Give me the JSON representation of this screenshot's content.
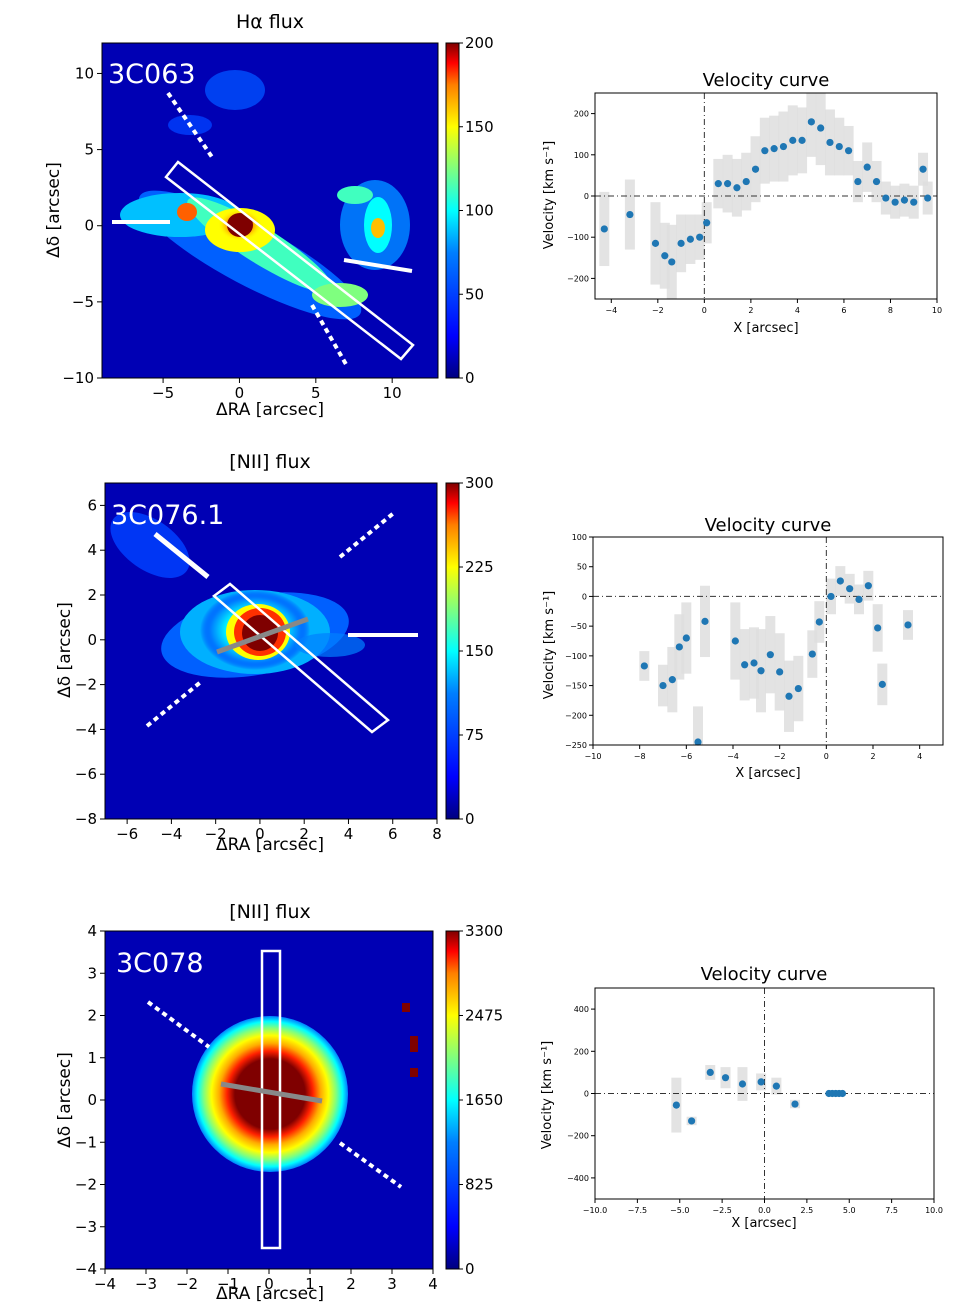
{
  "colorbar_stops": [
    "#00007f",
    "#0000ff",
    "#007fff",
    "#00ffff",
    "#7fff7f",
    "#ffff00",
    "#ff7f00",
    "#ff0000",
    "#7f0000"
  ],
  "mark_color": "#1f77b4",
  "errorbar_color": "#dedede",
  "chart_data": [
    {
      "type": "heatmap",
      "title": "Hα flux",
      "object_label": "3C063",
      "xlabel": "ΔRA [arcsec]",
      "ylabel": "Δδ [arcsec]",
      "xlim": [
        -9,
        13
      ],
      "ylim": [
        -10,
        12
      ],
      "xticks": [
        -5,
        0,
        5,
        10
      ],
      "yticks": [
        -10,
        -5,
        0,
        5,
        10
      ],
      "colorbar_range": [
        0,
        200
      ],
      "colorbar_ticks": [
        0,
        50,
        100,
        150,
        200
      ]
    },
    {
      "type": "scatter",
      "title": "Velocity curve",
      "xlabel": "X [arcsec]",
      "ylabel": "Velocity [km s⁻¹]",
      "xlim": [
        -4.7,
        10
      ],
      "ylim": [
        -250,
        250
      ],
      "xticks": [
        -4,
        -2,
        0,
        2,
        4,
        6,
        8,
        10
      ],
      "yticks": [
        -200,
        -100,
        0,
        100,
        200
      ],
      "x": [
        -4.3,
        -3.2,
        -2.1,
        -1.7,
        -1.4,
        -1.0,
        -0.6,
        -0.2,
        0.1,
        0.6,
        1.0,
        1.4,
        1.8,
        2.2,
        2.6,
        3.0,
        3.4,
        3.8,
        4.2,
        4.6,
        5.0,
        5.4,
        5.8,
        6.2,
        6.6,
        7.0,
        7.4,
        7.8,
        8.2,
        8.6,
        9.0,
        9.4,
        9.6
      ],
      "y": [
        -80,
        -45,
        -115,
        -145,
        -160,
        -115,
        -105,
        -100,
        -65,
        30,
        30,
        20,
        35,
        65,
        110,
        115,
        120,
        135,
        135,
        180,
        165,
        130,
        120,
        110,
        35,
        70,
        35,
        -5,
        -15,
        -10,
        -15,
        65,
        -5
      ],
      "yerr": [
        90,
        85,
        100,
        80,
        90,
        70,
        60,
        55,
        50,
        60,
        70,
        70,
        70,
        80,
        80,
        80,
        85,
        85,
        80,
        85,
        90,
        80,
        70,
        60,
        50,
        60,
        50,
        40,
        40,
        40,
        40,
        40,
        40
      ]
    },
    {
      "type": "heatmap",
      "title": "[NII] flux",
      "object_label": "3C076.1",
      "xlabel": "ΔRA [arcsec]",
      "ylabel": "Δδ [arcsec]",
      "xlim": [
        -7,
        8
      ],
      "ylim": [
        -8,
        7
      ],
      "xticks": [
        -6,
        -4,
        -2,
        0,
        2,
        4,
        6,
        8
      ],
      "yticks": [
        -8,
        -6,
        -4,
        -2,
        0,
        2,
        4,
        6
      ],
      "colorbar_range": [
        0,
        300
      ],
      "colorbar_ticks": [
        0,
        75,
        150,
        225,
        300
      ]
    },
    {
      "type": "scatter",
      "title": "Velocity curve",
      "xlabel": "X [arcsec]",
      "ylabel": "Velocity [km s⁻¹]",
      "xlim": [
        -10,
        5
      ],
      "ylim": [
        -250,
        100
      ],
      "xticks": [
        -10,
        -8,
        -6,
        -4,
        -2,
        0,
        2,
        4
      ],
      "yticks": [
        -250,
        -200,
        -150,
        -100,
        -50,
        0,
        50,
        100
      ],
      "x": [
        -7.8,
        -7.0,
        -6.6,
        -6.3,
        -6.0,
        -5.5,
        -5.2,
        -3.9,
        -3.5,
        -3.1,
        -2.8,
        -2.4,
        -2.0,
        -1.6,
        -1.2,
        -0.6,
        -0.3,
        0.2,
        0.6,
        1.0,
        1.4,
        1.8,
        2.2,
        2.4,
        3.5
      ],
      "y": [
        -117,
        -150,
        -140,
        -85,
        -70,
        -245,
        -42,
        -75,
        -115,
        -112,
        -125,
        -98,
        -127,
        -168,
        -155,
        -97,
        -43,
        0,
        26,
        13,
        -5,
        18,
        -53,
        -148,
        -48
      ],
      "yerr": [
        25,
        35,
        55,
        55,
        60,
        60,
        60,
        65,
        60,
        60,
        70,
        65,
        65,
        60,
        55,
        40,
        35,
        30,
        25,
        25,
        25,
        25,
        40,
        35,
        25
      ]
    },
    {
      "type": "heatmap",
      "title": "[NII] flux",
      "object_label": "3C078",
      "xlabel": "ΔRA [arcsec]",
      "ylabel": "Δδ [arcsec]",
      "xlim": [
        -4,
        4
      ],
      "ylim": [
        -4,
        4
      ],
      "xticks": [
        -4,
        -3,
        -2,
        -1,
        0,
        1,
        2,
        3,
        4
      ],
      "yticks": [
        -4,
        -3,
        -2,
        -1,
        0,
        1,
        2,
        3,
        4
      ],
      "colorbar_range": [
        0,
        3300
      ],
      "colorbar_ticks": [
        0,
        825,
        1650,
        2475,
        3300
      ]
    },
    {
      "type": "scatter",
      "title": "Velocity curve",
      "xlabel": "X [arcsec]",
      "ylabel": "Velocity [km s⁻¹]",
      "xlim": [
        -10,
        10
      ],
      "ylim": [
        -500,
        500
      ],
      "xticks": [
        -10,
        -7.5,
        -5,
        -2.5,
        0,
        2.5,
        5,
        7.5,
        10
      ],
      "xtick_labels": [
        "−10.0",
        "−7.5",
        "−5.0",
        "−2.5",
        "0.0",
        "2.5",
        "5.0",
        "7.5",
        "10.0"
      ],
      "yticks": [
        -400,
        -200,
        0,
        200,
        400
      ],
      "x": [
        -5.2,
        -4.3,
        -3.2,
        -2.3,
        -1.3,
        -0.2,
        0.7,
        1.8,
        3.8,
        4.0,
        4.2,
        4.4,
        4.6
      ],
      "y": [
        -55,
        -130,
        100,
        75,
        45,
        55,
        35,
        -50,
        0,
        0,
        0,
        0,
        0
      ],
      "yerr": [
        130,
        20,
        35,
        50,
        80,
        40,
        40,
        20,
        0,
        0,
        0,
        0,
        0
      ]
    }
  ]
}
